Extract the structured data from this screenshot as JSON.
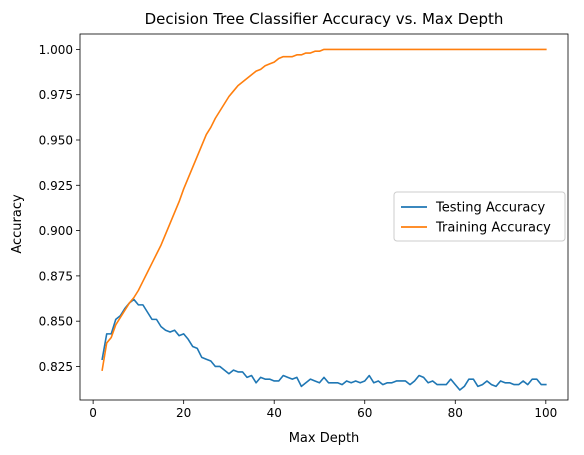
{
  "chart_data": {
    "type": "line",
    "title": "Decision Tree Classifier Accuracy vs. Max Depth",
    "xlabel": "Max Depth",
    "ylabel": "Accuracy",
    "xlim": [
      -2.9,
      104.9
    ],
    "ylim": [
      0.8065,
      1.0085
    ],
    "xticks": [
      0,
      20,
      40,
      60,
      80,
      100
    ],
    "yticks": [
      0.825,
      0.85,
      0.875,
      0.9,
      0.925,
      0.95,
      0.975,
      1.0
    ],
    "ytick_labels": [
      "0.825",
      "0.850",
      "0.875",
      "0.900",
      "0.925",
      "0.950",
      "0.975",
      "1.000"
    ],
    "grid": false,
    "legend": {
      "placement": "center-right",
      "entries": [
        "Testing Accuracy",
        "Training Accuracy"
      ]
    },
    "x": [
      2,
      3,
      4,
      5,
      6,
      7,
      8,
      9,
      10,
      11,
      12,
      13,
      14,
      15,
      16,
      17,
      18,
      19,
      20,
      21,
      22,
      23,
      24,
      25,
      26,
      27,
      28,
      29,
      30,
      31,
      32,
      33,
      34,
      35,
      36,
      37,
      38,
      39,
      40,
      41,
      42,
      43,
      44,
      45,
      46,
      47,
      48,
      49,
      50,
      51,
      52,
      53,
      54,
      55,
      56,
      57,
      58,
      59,
      60,
      61,
      62,
      63,
      64,
      65,
      66,
      67,
      68,
      69,
      70,
      71,
      72,
      73,
      74,
      75,
      76,
      77,
      78,
      79,
      80,
      81,
      82,
      83,
      84,
      85,
      86,
      87,
      88,
      89,
      90,
      91,
      92,
      93,
      94,
      95,
      96,
      97,
      98,
      99,
      100
    ],
    "series": [
      {
        "name": "Testing Accuracy",
        "color": "#1f77b4",
        "values": [
          0.829,
          0.843,
          0.843,
          0.851,
          0.853,
          0.857,
          0.86,
          0.862,
          0.859,
          0.859,
          0.855,
          0.851,
          0.851,
          0.847,
          0.845,
          0.844,
          0.845,
          0.842,
          0.843,
          0.84,
          0.836,
          0.835,
          0.83,
          0.829,
          0.828,
          0.825,
          0.825,
          0.823,
          0.821,
          0.823,
          0.822,
          0.822,
          0.819,
          0.82,
          0.816,
          0.819,
          0.818,
          0.818,
          0.817,
          0.817,
          0.82,
          0.819,
          0.818,
          0.819,
          0.814,
          0.816,
          0.818,
          0.817,
          0.816,
          0.819,
          0.816,
          0.816,
          0.816,
          0.815,
          0.817,
          0.816,
          0.817,
          0.816,
          0.817,
          0.82,
          0.816,
          0.817,
          0.815,
          0.816,
          0.816,
          0.817,
          0.817,
          0.817,
          0.815,
          0.817,
          0.82,
          0.819,
          0.816,
          0.817,
          0.815,
          0.815,
          0.815,
          0.818,
          0.815,
          0.812,
          0.814,
          0.818,
          0.818,
          0.814,
          0.815,
          0.817,
          0.815,
          0.814,
          0.817,
          0.816,
          0.816,
          0.815,
          0.815,
          0.817,
          0.815,
          0.818,
          0.818,
          0.815,
          0.815
        ]
      },
      {
        "name": "Training Accuracy",
        "color": "#ff7f0e",
        "values": [
          0.823,
          0.838,
          0.841,
          0.848,
          0.852,
          0.856,
          0.86,
          0.863,
          0.867,
          0.872,
          0.877,
          0.882,
          0.887,
          0.892,
          0.898,
          0.904,
          0.91,
          0.916,
          0.923,
          0.929,
          0.935,
          0.941,
          0.947,
          0.953,
          0.957,
          0.962,
          0.966,
          0.97,
          0.974,
          0.977,
          0.98,
          0.982,
          0.984,
          0.986,
          0.988,
          0.989,
          0.991,
          0.992,
          0.993,
          0.995,
          0.996,
          0.996,
          0.996,
          0.997,
          0.997,
          0.998,
          0.998,
          0.999,
          0.999,
          1.0,
          1.0,
          1.0,
          1.0,
          1.0,
          1.0,
          1.0,
          1.0,
          1.0,
          1.0,
          1.0,
          1.0,
          1.0,
          1.0,
          1.0,
          1.0,
          1.0,
          1.0,
          1.0,
          1.0,
          1.0,
          1.0,
          1.0,
          1.0,
          1.0,
          1.0,
          1.0,
          1.0,
          1.0,
          1.0,
          1.0,
          1.0,
          1.0,
          1.0,
          1.0,
          1.0,
          1.0,
          1.0,
          1.0,
          1.0,
          1.0,
          1.0,
          1.0,
          1.0,
          1.0,
          1.0,
          1.0,
          1.0,
          1.0,
          1.0
        ]
      }
    ]
  }
}
